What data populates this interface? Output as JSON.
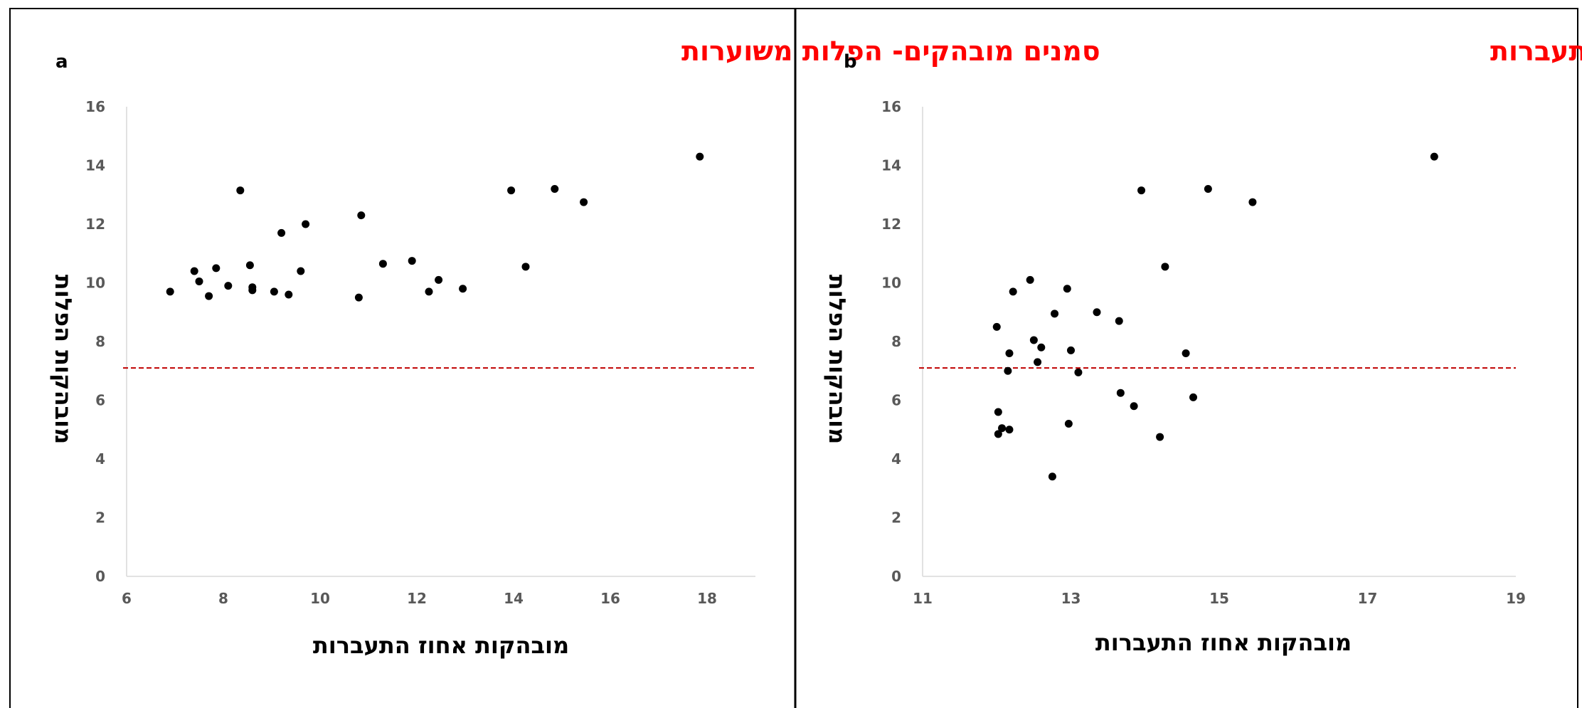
{
  "colors": {
    "title": "#ff0000",
    "reference_line": "#c00000",
    "points": "#000000",
    "ticks": "#595959"
  },
  "chart_data": [
    {
      "type": "scatter",
      "panel_label": "a",
      "title": "סמנים מובהקים- הפלות משוערות",
      "xlabel": "מובהקות אחוז התעברות",
      "ylabel": "מובהקות הפלות",
      "xlim": [
        6,
        19
      ],
      "ylim": [
        0,
        16
      ],
      "xticks": [
        6,
        8,
        10,
        12,
        14,
        16,
        18
      ],
      "yticks": [
        0,
        2,
        4,
        6,
        8,
        10,
        12,
        14,
        16
      ],
      "reference_line_y": 7.1,
      "grid": false,
      "points": [
        {
          "x": 6.9,
          "y": 9.7
        },
        {
          "x": 7.4,
          "y": 10.4
        },
        {
          "x": 7.5,
          "y": 10.05
        },
        {
          "x": 7.7,
          "y": 9.55
        },
        {
          "x": 7.85,
          "y": 10.5
        },
        {
          "x": 8.1,
          "y": 9.9
        },
        {
          "x": 8.35,
          "y": 13.15
        },
        {
          "x": 8.55,
          "y": 10.6
        },
        {
          "x": 8.6,
          "y": 9.85
        },
        {
          "x": 8.6,
          "y": 9.75
        },
        {
          "x": 9.05,
          "y": 9.7
        },
        {
          "x": 9.2,
          "y": 11.7
        },
        {
          "x": 9.35,
          "y": 9.6
        },
        {
          "x": 9.6,
          "y": 10.4
        },
        {
          "x": 9.7,
          "y": 12.0
        },
        {
          "x": 10.8,
          "y": 9.5
        },
        {
          "x": 10.85,
          "y": 12.3
        },
        {
          "x": 11.3,
          "y": 10.65
        },
        {
          "x": 11.9,
          "y": 10.75
        },
        {
          "x": 12.25,
          "y": 9.7
        },
        {
          "x": 12.45,
          "y": 10.1
        },
        {
          "x": 12.95,
          "y": 9.8
        },
        {
          "x": 13.95,
          "y": 13.15
        },
        {
          "x": 14.25,
          "y": 10.55
        },
        {
          "x": 14.85,
          "y": 13.2
        },
        {
          "x": 15.45,
          "y": 12.75
        },
        {
          "x": 17.85,
          "y": 14.3
        }
      ]
    },
    {
      "type": "scatter",
      "panel_label": "b",
      "title": "סמנים מובהקים- אחוז התעברות",
      "xlabel": "מובהקות אחוז התעברות",
      "ylabel": "מובהקות הפלות",
      "xlim": [
        11,
        19
      ],
      "ylim": [
        0,
        16
      ],
      "xticks": [
        11,
        13,
        15,
        17,
        19
      ],
      "yticks": [
        0,
        2,
        4,
        6,
        8,
        10,
        12,
        14,
        16
      ],
      "reference_line_y": 7.1,
      "grid": false,
      "points": [
        {
          "x": 12.0,
          "y": 8.5
        },
        {
          "x": 12.02,
          "y": 5.6
        },
        {
          "x": 12.02,
          "y": 4.85
        },
        {
          "x": 12.07,
          "y": 5.05
        },
        {
          "x": 12.15,
          "y": 7.0
        },
        {
          "x": 12.17,
          "y": 7.6
        },
        {
          "x": 12.17,
          "y": 5.0
        },
        {
          "x": 12.22,
          "y": 9.7
        },
        {
          "x": 12.45,
          "y": 10.1
        },
        {
          "x": 12.5,
          "y": 8.05
        },
        {
          "x": 12.55,
          "y": 7.3
        },
        {
          "x": 12.6,
          "y": 7.8
        },
        {
          "x": 12.75,
          "y": 3.4
        },
        {
          "x": 12.78,
          "y": 8.95
        },
        {
          "x": 12.95,
          "y": 9.8
        },
        {
          "x": 12.97,
          "y": 5.2
        },
        {
          "x": 13.0,
          "y": 7.7
        },
        {
          "x": 13.1,
          "y": 6.95
        },
        {
          "x": 13.35,
          "y": 9.0
        },
        {
          "x": 13.65,
          "y": 8.7
        },
        {
          "x": 13.67,
          "y": 6.25
        },
        {
          "x": 13.85,
          "y": 5.8
        },
        {
          "x": 13.95,
          "y": 13.15
        },
        {
          "x": 14.2,
          "y": 4.75
        },
        {
          "x": 14.27,
          "y": 10.55
        },
        {
          "x": 14.55,
          "y": 7.6
        },
        {
          "x": 14.65,
          "y": 6.1
        },
        {
          "x": 14.85,
          "y": 13.2
        },
        {
          "x": 15.45,
          "y": 12.75
        },
        {
          "x": 17.9,
          "y": 14.3
        }
      ]
    }
  ]
}
